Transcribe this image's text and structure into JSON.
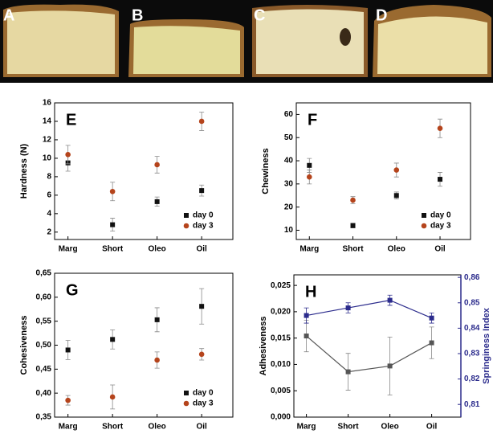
{
  "photo_labels": [
    "A",
    "B",
    "C",
    "D"
  ],
  "chart_data": [
    {
      "type": "scatter",
      "panel_label": "E",
      "y_label": "Hardness (N)",
      "categories": [
        "Marg",
        "Short",
        "Oleo",
        "Oil"
      ],
      "series": [
        {
          "name": "day 0",
          "color": "#111111",
          "marker": "square",
          "values": [
            9.5,
            2.8,
            5.3,
            6.5
          ],
          "errors": [
            0.9,
            0.7,
            0.5,
            0.6
          ]
        },
        {
          "name": "day 3",
          "color": "#b5441c",
          "marker": "circle",
          "values": [
            10.4,
            6.4,
            9.3,
            14.0
          ],
          "errors": [
            1.0,
            1.0,
            0.9,
            1.0
          ]
        }
      ],
      "ylim": [
        1.2,
        16
      ],
      "yticks": [
        2,
        4,
        6,
        8,
        10,
        12,
        14,
        16
      ],
      "legend": "lower right"
    },
    {
      "type": "scatter",
      "panel_label": "F",
      "y_label": "Chewiness",
      "categories": [
        "Marg",
        "Short",
        "Oleo",
        "Oil"
      ],
      "series": [
        {
          "name": "day 0",
          "color": "#111111",
          "marker": "square",
          "values": [
            38,
            12,
            25,
            32
          ],
          "errors": [
            3,
            1,
            1.5,
            3
          ]
        },
        {
          "name": "day 3",
          "color": "#b5441c",
          "marker": "circle",
          "values": [
            33,
            23,
            36,
            54
          ],
          "errors": [
            3,
            1.5,
            3,
            4
          ]
        }
      ],
      "ylim": [
        6,
        65
      ],
      "yticks": [
        10,
        20,
        30,
        40,
        50,
        60
      ],
      "legend": "lower right"
    },
    {
      "type": "scatter",
      "panel_label": "G",
      "y_label": "Cohesiveness",
      "categories": [
        "Marg",
        "Short",
        "Oleo",
        "Oil"
      ],
      "series": [
        {
          "name": "day 0",
          "color": "#111111",
          "marker": "square",
          "values": [
            0.49,
            0.512,
            0.553,
            0.581
          ],
          "errors": [
            0.02,
            0.02,
            0.025,
            0.037
          ]
        },
        {
          "name": "day 3",
          "color": "#b5441c",
          "marker": "circle",
          "values": [
            0.385,
            0.392,
            0.469,
            0.481
          ],
          "errors": [
            0.01,
            0.025,
            0.017,
            0.012
          ]
        }
      ],
      "ylim": [
        0.35,
        0.65
      ],
      "yticks": [
        {
          "value": 0.35,
          "label": "0,35"
        },
        {
          "value": 0.4,
          "label": "0,40"
        },
        {
          "value": 0.45,
          "label": "0,45"
        },
        {
          "value": 0.5,
          "label": "0,50"
        },
        {
          "value": 0.55,
          "label": "0,55"
        },
        {
          "value": 0.6,
          "label": "0,60"
        },
        {
          "value": 0.65,
          "label": "0,65"
        }
      ],
      "legend": "lower right"
    },
    {
      "type": "line",
      "panel_label": "H",
      "y_label": "Adhesiveness",
      "y2_label": "Springiness Index",
      "categories": [
        "Marg",
        "Short",
        "Oleo",
        "Oil"
      ],
      "series": [
        {
          "color": "#555555",
          "marker": "square",
          "values": [
            0.0154,
            0.0086,
            0.0097,
            0.0141
          ],
          "errors": [
            0.003,
            0.0035,
            0.0055,
            0.003
          ]
        },
        {
          "color": "#2b2b8c",
          "marker": "square",
          "axis": "y2",
          "values": [
            0.845,
            0.848,
            0.851,
            0.844
          ],
          "errors": [
            0.003,
            0.002,
            0.002,
            0.002
          ]
        }
      ],
      "ylim": [
        0,
        0.027
      ],
      "yticks": [
        {
          "value": 0,
          "label": "0,000"
        },
        {
          "value": 0.005,
          "label": "0,005"
        },
        {
          "value": 0.01,
          "label": "0,010"
        },
        {
          "value": 0.015,
          "label": "0,015"
        },
        {
          "value": 0.02,
          "label": "0,020"
        },
        {
          "value": 0.025,
          "label": "0,025"
        }
      ],
      "y2lim": [
        0.805,
        0.861
      ],
      "y2ticks": [
        {
          "value": 0.81,
          "label": "0,81"
        },
        {
          "value": 0.82,
          "label": "0,82"
        },
        {
          "value": 0.83,
          "label": "0,83"
        },
        {
          "value": 0.84,
          "label": "0,84"
        },
        {
          "value": 0.85,
          "label": "0,85"
        },
        {
          "value": 0.86,
          "label": "0,86"
        }
      ],
      "y2_color": "#2b2b8c"
    }
  ]
}
